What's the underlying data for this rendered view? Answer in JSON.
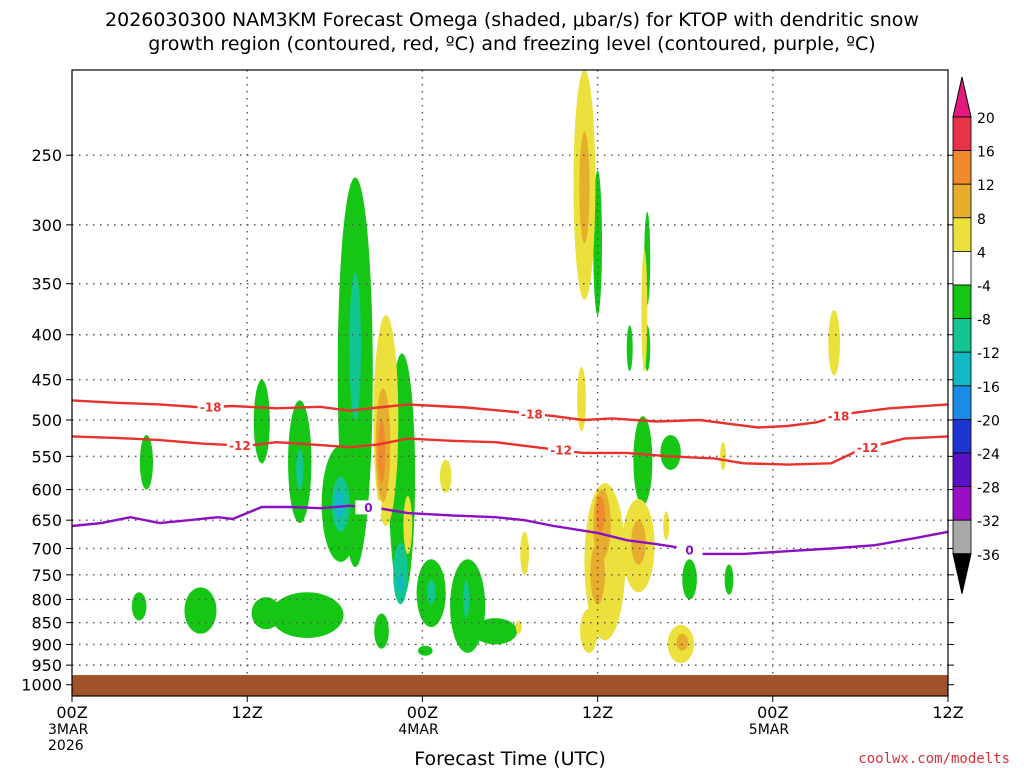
{
  "chart_data": {
    "type": "heatmap",
    "title_line1": "2026030300 NAM3KM Forecast Omega (shaded, μbar/s) for KTOP with dendritic snow",
    "title_line2": "growth region (contoured, red, ºC) and freezing level (contoured, purple, ºC)",
    "xlabel": "Forecast Time (UTC)",
    "credit": "coolwx.com/modelts",
    "x_range": [
      0,
      60
    ],
    "y_range_hPa": [
      200,
      1030
    ],
    "x_ticks": [
      {
        "x": 0,
        "lines": [
          "00Z",
          "3MAR",
          "2026"
        ]
      },
      {
        "x": 12,
        "lines": [
          "12Z"
        ]
      },
      {
        "x": 24,
        "lines": [
          "00Z",
          "4MAR"
        ]
      },
      {
        "x": 36,
        "lines": [
          "12Z"
        ]
      },
      {
        "x": 48,
        "lines": [
          "00Z",
          "5MAR"
        ]
      },
      {
        "x": 60,
        "lines": [
          "12Z"
        ]
      }
    ],
    "y_ticks": [
      250,
      300,
      350,
      400,
      450,
      500,
      550,
      600,
      650,
      700,
      750,
      800,
      850,
      900,
      950,
      1000
    ],
    "surface_pressure": 975,
    "colorbar": {
      "labels": [
        "20",
        "16",
        "12",
        "8",
        "4",
        "-4",
        "-8",
        "-12",
        "-16",
        "-20",
        "-24",
        "-28",
        "-32",
        "-36"
      ],
      "colors": [
        "#e8324a",
        "#f08a2c",
        "#e6ad2e",
        "#ebe03c",
        "#ffffff",
        "#15c615",
        "#13c591",
        "#13b8c5",
        "#1a8ce6",
        "#1c36cf",
        "#5a10c3",
        "#9a0fc3",
        "#a8a8a8"
      ],
      "top_color": "#e31a7e",
      "bottom_color": "#000000"
    },
    "contours": [
      {
        "label": "-18",
        "color": "#e8322d",
        "label_x": 9.5,
        "points": [
          [
            0,
            475
          ],
          [
            3,
            478
          ],
          [
            6,
            480
          ],
          [
            9,
            484
          ],
          [
            11,
            482
          ],
          [
            14,
            485
          ],
          [
            17,
            483
          ],
          [
            19,
            488
          ],
          [
            21,
            484
          ],
          [
            23,
            480
          ],
          [
            25,
            482
          ],
          [
            27,
            484
          ],
          [
            30,
            489
          ],
          [
            33,
            495
          ],
          [
            35,
            500
          ],
          [
            37,
            498
          ],
          [
            40,
            502
          ],
          [
            43,
            500
          ],
          [
            45,
            505
          ],
          [
            47,
            510
          ],
          [
            49,
            508
          ],
          [
            51,
            503
          ],
          [
            53,
            492
          ],
          [
            56,
            485
          ],
          [
            60,
            480
          ]
        ]
      },
      {
        "label": "-12",
        "color": "#e8322d",
        "label_x": 11.5,
        "points": [
          [
            0,
            522
          ],
          [
            3,
            524
          ],
          [
            6,
            527
          ],
          [
            9,
            532
          ],
          [
            12,
            535
          ],
          [
            14,
            530
          ],
          [
            17,
            534
          ],
          [
            19,
            537
          ],
          [
            21,
            533
          ],
          [
            23,
            525
          ],
          [
            26,
            528
          ],
          [
            29,
            530
          ],
          [
            31,
            535
          ],
          [
            33,
            540
          ],
          [
            35,
            545
          ],
          [
            38,
            545
          ],
          [
            41,
            550
          ],
          [
            44,
            553
          ],
          [
            46,
            560
          ],
          [
            49,
            562
          ],
          [
            52,
            560
          ],
          [
            54,
            540
          ],
          [
            57,
            525
          ],
          [
            60,
            522
          ]
        ]
      },
      {
        "label": "0",
        "color": "#8a0fc3",
        "label_x": 20.3,
        "points": [
          [
            0,
            660
          ],
          [
            2,
            655
          ],
          [
            4,
            645
          ],
          [
            6,
            655
          ],
          [
            8,
            650
          ],
          [
            10,
            645
          ],
          [
            11,
            648
          ],
          [
            13,
            628
          ],
          [
            15,
            628
          ],
          [
            17,
            630
          ],
          [
            19,
            626
          ],
          [
            21,
            630
          ],
          [
            23,
            638
          ],
          [
            26,
            642
          ],
          [
            29,
            645
          ],
          [
            31,
            650
          ],
          [
            33,
            660
          ],
          [
            36,
            672
          ],
          [
            38,
            685
          ],
          [
            40,
            692
          ],
          [
            42,
            700
          ],
          [
            43,
            710
          ],
          [
            46,
            710
          ],
          [
            49,
            705
          ],
          [
            52,
            700
          ],
          [
            55,
            694
          ],
          [
            58,
            680
          ],
          [
            60,
            670
          ]
        ]
      }
    ],
    "omega_cells": [
      {
        "x": 19.4,
        "p": 500,
        "rx": 1.2,
        "ry": 235,
        "level": -8
      },
      {
        "x": 19.4,
        "p": 420,
        "rx": 0.4,
        "ry": 80,
        "level": -12
      },
      {
        "x": 18.4,
        "p": 630,
        "rx": 1.3,
        "ry": 95,
        "level": -8
      },
      {
        "x": 18.4,
        "p": 625,
        "rx": 0.6,
        "ry": 45,
        "level": -12
      },
      {
        "x": 18.3,
        "p": 625,
        "rx": 0.3,
        "ry": 25,
        "level": -16
      },
      {
        "x": 15.6,
        "p": 565,
        "rx": 0.8,
        "ry": 90,
        "level": -8
      },
      {
        "x": 15.6,
        "p": 570,
        "rx": 0.25,
        "ry": 30,
        "level": -12
      },
      {
        "x": 13.0,
        "p": 505,
        "rx": 0.55,
        "ry": 55,
        "level": -8
      },
      {
        "x": 5.1,
        "p": 560,
        "rx": 0.45,
        "ry": 40,
        "level": -8
      },
      {
        "x": 22.6,
        "p": 610,
        "rx": 0.9,
        "ry": 190,
        "level": -8
      },
      {
        "x": 22.5,
        "p": 750,
        "rx": 0.5,
        "ry": 60,
        "level": -12
      },
      {
        "x": 22.5,
        "p": 765,
        "rx": 0.2,
        "ry": 20,
        "level": -16
      },
      {
        "x": 24.6,
        "p": 790,
        "rx": 1.0,
        "ry": 70,
        "level": -8
      },
      {
        "x": 24.6,
        "p": 785,
        "rx": 0.3,
        "ry": 25,
        "level": -12
      },
      {
        "x": 27.1,
        "p": 820,
        "rx": 1.2,
        "ry": 100,
        "level": -8
      },
      {
        "x": 27.0,
        "p": 800,
        "rx": 0.2,
        "ry": 40,
        "level": -12
      },
      {
        "x": 16.1,
        "p": 835,
        "rx": 2.5,
        "ry": 50,
        "level": -8
      },
      {
        "x": 13.3,
        "p": 830,
        "rx": 1.0,
        "ry": 35,
        "level": -8
      },
      {
        "x": 8.8,
        "p": 825,
        "rx": 1.1,
        "ry": 50,
        "level": -8
      },
      {
        "x": 4.6,
        "p": 815,
        "rx": 0.5,
        "ry": 30,
        "level": -8
      },
      {
        "x": 21.2,
        "p": 870,
        "rx": 0.5,
        "ry": 40,
        "level": -8
      },
      {
        "x": 24.2,
        "p": 915,
        "rx": 0.5,
        "ry": 12,
        "level": -8
      },
      {
        "x": 29.0,
        "p": 870,
        "rx": 1.5,
        "ry": 30,
        "level": -8
      },
      {
        "x": 36.0,
        "p": 320,
        "rx": 0.3,
        "ry": 60,
        "level": -8
      },
      {
        "x": 39.4,
        "p": 330,
        "rx": 0.15,
        "ry": 40,
        "level": -8
      },
      {
        "x": 39.4,
        "p": 415,
        "rx": 0.15,
        "ry": 25,
        "level": -8
      },
      {
        "x": 38.2,
        "p": 415,
        "rx": 0.15,
        "ry": 25,
        "level": -8
      },
      {
        "x": 41.0,
        "p": 545,
        "rx": 0.7,
        "ry": 25,
        "level": -8
      },
      {
        "x": 39.1,
        "p": 560,
        "rx": 0.65,
        "ry": 65,
        "level": -8
      },
      {
        "x": 42.3,
        "p": 760,
        "rx": 0.5,
        "ry": 40,
        "level": -8
      },
      {
        "x": 45.0,
        "p": 760,
        "rx": 0.3,
        "ry": 30,
        "level": -8
      }
    ],
    "positive_cells": [
      {
        "x": 21.5,
        "p": 520,
        "rx": 0.85,
        "ry": 140,
        "level": 4
      },
      {
        "x": 21.3,
        "p": 540,
        "rx": 0.5,
        "ry": 80,
        "level": 8
      },
      {
        "x": 21.2,
        "p": 545,
        "rx": 0.25,
        "ry": 45,
        "level": 12
      },
      {
        "x": 35.1,
        "p": 280,
        "rx": 0.75,
        "ry": 85,
        "level": 4
      },
      {
        "x": 35.1,
        "p": 275,
        "rx": 0.35,
        "ry": 40,
        "level": 8
      },
      {
        "x": 34.9,
        "p": 475,
        "rx": 0.3,
        "ry": 40,
        "level": 4
      },
      {
        "x": 39.2,
        "p": 380,
        "rx": 0.15,
        "ry": 60,
        "level": 4
      },
      {
        "x": 52.2,
        "p": 410,
        "rx": 0.4,
        "ry": 35,
        "level": 4
      },
      {
        "x": 44.6,
        "p": 550,
        "rx": 0.2,
        "ry": 20,
        "level": 4
      },
      {
        "x": 25.6,
        "p": 580,
        "rx": 0.4,
        "ry": 25,
        "level": 4
      },
      {
        "x": 23.0,
        "p": 660,
        "rx": 0.3,
        "ry": 50,
        "level": 4
      },
      {
        "x": 31.0,
        "p": 710,
        "rx": 0.3,
        "ry": 40,
        "level": 4
      },
      {
        "x": 30.6,
        "p": 860,
        "rx": 0.2,
        "ry": 15,
        "level": 4
      },
      {
        "x": 36.5,
        "p": 740,
        "rx": 1.4,
        "ry": 150,
        "level": 4
      },
      {
        "x": 36.3,
        "p": 660,
        "rx": 0.6,
        "ry": 60,
        "level": 8
      },
      {
        "x": 36.2,
        "p": 640,
        "rx": 0.3,
        "ry": 30,
        "level": 12
      },
      {
        "x": 36.0,
        "p": 750,
        "rx": 0.5,
        "ry": 60,
        "level": 8
      },
      {
        "x": 38.8,
        "p": 700,
        "rx": 1.1,
        "ry": 85,
        "level": 4
      },
      {
        "x": 38.8,
        "p": 690,
        "rx": 0.5,
        "ry": 40,
        "level": 8
      },
      {
        "x": 35.4,
        "p": 870,
        "rx": 0.6,
        "ry": 50,
        "level": 4
      },
      {
        "x": 41.7,
        "p": 900,
        "rx": 0.9,
        "ry": 45,
        "level": 4
      },
      {
        "x": 41.8,
        "p": 895,
        "rx": 0.4,
        "ry": 20,
        "level": 8
      },
      {
        "x": 40.7,
        "p": 660,
        "rx": 0.2,
        "ry": 25,
        "level": 4
      }
    ]
  }
}
